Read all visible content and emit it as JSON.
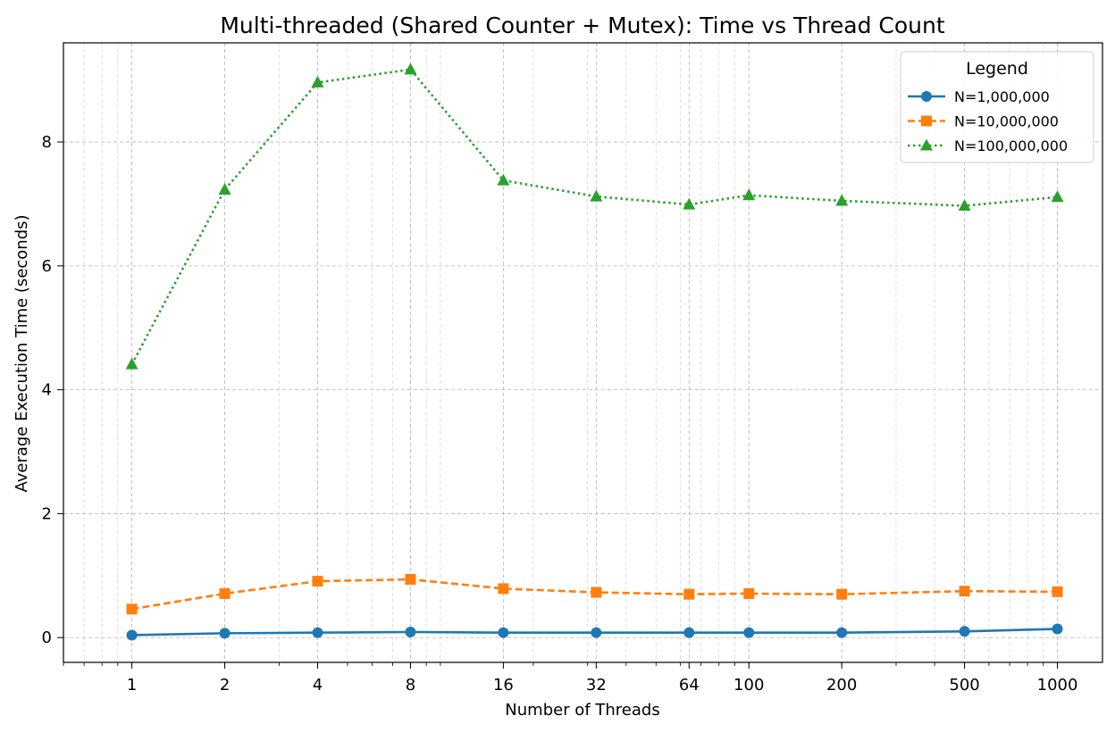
{
  "chart_data": {
    "type": "line",
    "title": "Multi-threaded (Shared Counter + Mutex): Time vs Thread Count",
    "xlabel": "Number of Threads",
    "ylabel": "Average Execution Time (seconds)",
    "x_scale": "log",
    "x": [
      1,
      2,
      4,
      8,
      16,
      32,
      64,
      100,
      200,
      500,
      1000
    ],
    "x_tick_labels": [
      "1",
      "2",
      "4",
      "8",
      "16",
      "32",
      "64",
      "100",
      "200",
      "500",
      "1000"
    ],
    "xlim": [
      0.6,
      1400
    ],
    "ylim": [
      -0.4,
      9.6
    ],
    "y_ticks": [
      0,
      2,
      4,
      6,
      8
    ],
    "y_tick_labels": [
      "0",
      "2",
      "4",
      "6",
      "8"
    ],
    "grid": true,
    "legend": {
      "title": "Legend",
      "position": "top-right"
    },
    "series": [
      {
        "name": "N=1,000,000",
        "color": "#1f77b4",
        "line_style": "solid",
        "marker": "circle",
        "values": [
          0.04,
          0.07,
          0.08,
          0.09,
          0.08,
          0.08,
          0.08,
          0.08,
          0.08,
          0.1,
          0.14
        ]
      },
      {
        "name": "N=10,000,000",
        "color": "#ff7f0e",
        "line_style": "dashed",
        "marker": "square",
        "values": [
          0.46,
          0.71,
          0.91,
          0.94,
          0.79,
          0.73,
          0.7,
          0.71,
          0.7,
          0.75,
          0.74
        ]
      },
      {
        "name": "N=100,000,000",
        "color": "#2ca02c",
        "line_style": "dotted",
        "marker": "triangle",
        "values": [
          4.41,
          7.23,
          8.96,
          9.17,
          7.38,
          7.12,
          6.99,
          7.14,
          7.05,
          6.97,
          7.11
        ]
      }
    ]
  }
}
